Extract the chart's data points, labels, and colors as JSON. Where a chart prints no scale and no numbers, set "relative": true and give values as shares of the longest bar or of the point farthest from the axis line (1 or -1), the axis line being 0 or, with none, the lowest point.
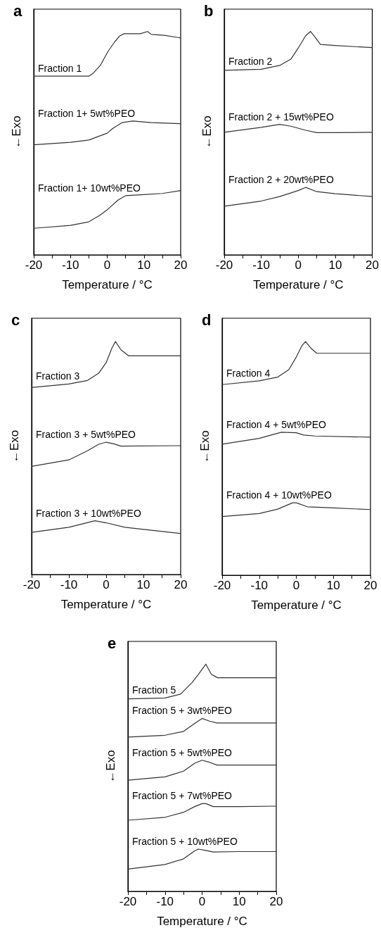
{
  "chart_data": [
    {
      "type": "line",
      "title": "a",
      "xlabel": "Temperature / °C",
      "ylabel": "←Exo",
      "relative": true,
      "marker": "none",
      "xlim": [
        -20,
        20
      ],
      "xticks": [
        -20,
        {
          "value": -15,
          "label": null
        },
        -10,
        {
          "value": -5,
          "label": null
        },
        0,
        {
          "value": 5,
          "label": null
        },
        10,
        {
          "value": 15,
          "label": null
        },
        20
      ],
      "series": [
        {
          "name": "Fraction 1",
          "color": "#333333",
          "x": [
            -20,
            -10,
            -5,
            -3.7,
            -1.8,
            0.2,
            2.1,
            3.4,
            4.6,
            9,
            11,
            12,
            15.5,
            20
          ],
          "values": [
            0.8,
            0.8,
            0.8,
            0.815,
            0.85,
            0.91,
            0.955,
            0.98,
            0.99,
            0.99,
            1,
            0.987,
            0.983,
            0.971
          ]
        },
        {
          "name": "Fraction 1+ 5wt%PEO",
          "color": "#333333",
          "x": [
            -20,
            -10,
            -5,
            0,
            1.5,
            4,
            7,
            12,
            20
          ],
          "values": [
            0.493,
            0.504,
            0.514,
            0.545,
            0.566,
            0.592,
            0.599,
            0.592,
            0.587
          ]
        },
        {
          "name": "Fraction 1+ 10wt%PEO",
          "color": "#333333",
          "x": [
            -20,
            -10,
            -5,
            -2,
            0,
            3,
            5,
            10,
            15,
            20
          ],
          "values": [
            0.119,
            0.132,
            0.148,
            0.177,
            0.202,
            0.246,
            0.265,
            0.27,
            0.275,
            0.288
          ]
        }
      ]
    },
    {
      "type": "line",
      "title": "b",
      "xlabel": "Temperature / °C",
      "ylabel": "←Exo",
      "relative": true,
      "marker": "none",
      "xlim": [
        -20,
        20
      ],
      "xticks": [
        -20,
        {
          "value": -15,
          "label": null
        },
        -10,
        {
          "value": -5,
          "label": null
        },
        0,
        {
          "value": 5,
          "label": null
        },
        10,
        {
          "value": 15,
          "label": null
        },
        20
      ],
      "series": [
        {
          "name": "Fraction 2",
          "color": "#333333",
          "x": [
            -20,
            -10,
            -5,
            -2,
            0,
            2,
            3.3,
            4.5,
            6,
            10,
            20
          ],
          "values": [
            0.826,
            0.831,
            0.848,
            0.876,
            0.926,
            0.981,
            1,
            0.976,
            0.942,
            0.937,
            0.928
          ]
        },
        {
          "name": "Fraction 2 + 15wt%PEO",
          "color": "#333333",
          "x": [
            -20,
            -10,
            -5,
            -2,
            2,
            5,
            10,
            20
          ],
          "values": [
            0.549,
            0.571,
            0.584,
            0.576,
            0.558,
            0.547,
            0.547,
            0.549
          ]
        },
        {
          "name": "Fraction 2 + 20wt%PEO",
          "color": "#333333",
          "x": [
            -20,
            -10,
            -5,
            0,
            2,
            5,
            10,
            20
          ],
          "values": [
            0.218,
            0.241,
            0.261,
            0.288,
            0.302,
            0.283,
            0.274,
            0.261
          ]
        }
      ]
    },
    {
      "type": "line",
      "title": "c",
      "xlabel": "Temperature / °C",
      "ylabel": "←Exo",
      "relative": true,
      "marker": "none",
      "xlim": [
        -20,
        20
      ],
      "xticks": [
        -20,
        {
          "value": -15,
          "label": null
        },
        -10,
        {
          "value": -5,
          "label": null
        },
        0,
        {
          "value": 5,
          "label": null
        },
        10,
        {
          "value": 15,
          "label": null
        },
        20
      ],
      "series": [
        {
          "name": "Fraction 3",
          "color": "#333333",
          "x": [
            -20,
            -10,
            -5,
            -2,
            0,
            1.5,
            2.5,
            4,
            6,
            20
          ],
          "values": [
            0.803,
            0.818,
            0.833,
            0.864,
            0.909,
            0.97,
            1,
            0.964,
            0.939,
            0.939
          ]
        },
        {
          "name": "Fraction 3 + 5wt%PEO",
          "color": "#333333",
          "x": [
            -20,
            -10,
            -5,
            -2,
            0,
            2,
            4,
            20
          ],
          "values": [
            0.464,
            0.492,
            0.531,
            0.559,
            0.568,
            0.561,
            0.551,
            0.553
          ]
        },
        {
          "name": "Fraction 3 + 10wt%PEO",
          "color": "#333333",
          "x": [
            -20,
            -10,
            -3,
            0,
            5,
            10,
            20
          ],
          "values": [
            0.181,
            0.203,
            0.231,
            0.222,
            0.203,
            0.194,
            0.176
          ]
        }
      ]
    },
    {
      "type": "line",
      "title": "d",
      "xlabel": "Temperature / °C",
      "ylabel": "←Exo",
      "relative": true,
      "marker": "none",
      "xlim": [
        -20,
        20
      ],
      "xticks": [
        -20,
        {
          "value": -15,
          "label": null
        },
        -10,
        {
          "value": -5,
          "label": null
        },
        0,
        {
          "value": 5,
          "label": null
        },
        10,
        {
          "value": 15,
          "label": null
        },
        20
      ],
      "series": [
        {
          "name": "Fraction 4",
          "color": "#333333",
          "x": [
            -20,
            -10,
            -5,
            -2,
            0,
            1.5,
            2.5,
            4,
            5.5,
            20
          ],
          "values": [
            0.816,
            0.832,
            0.848,
            0.88,
            0.934,
            0.982,
            1,
            0.971,
            0.95,
            0.95
          ]
        },
        {
          "name": "Fraction 4 + 5wt%PEO",
          "color": "#333333",
          "x": [
            -20,
            -10,
            -4,
            0,
            2,
            5,
            20
          ],
          "values": [
            0.561,
            0.586,
            0.612,
            0.61,
            0.6,
            0.596,
            0.591
          ]
        },
        {
          "name": "Fraction 4 + 10wt%PEO",
          "color": "#333333",
          "x": [
            -20,
            -10,
            -5,
            -1,
            0,
            3,
            10,
            20
          ],
          "values": [
            0.251,
            0.264,
            0.283,
            0.31,
            0.31,
            0.293,
            0.288,
            0.281
          ]
        }
      ]
    },
    {
      "type": "line",
      "title": "e",
      "xlabel": "Temperature / °C",
      "ylabel": "←Exo",
      "relative": true,
      "marker": "none",
      "xlim": [
        -20,
        20
      ],
      "xticks": [
        -20,
        {
          "value": -15,
          "label": null
        },
        -10,
        {
          "value": -5,
          "label": null
        },
        0,
        {
          "value": 5,
          "label": null
        },
        10,
        {
          "value": 15,
          "label": null
        },
        20
      ],
      "series": [
        {
          "name": "Fraction 5",
          "color": "#333333",
          "x": [
            -20,
            -10,
            -5.8,
            -2.7,
            -1,
            1,
            2.5,
            4.2,
            20
          ],
          "values": [
            0.847,
            0.851,
            0.868,
            0.919,
            0.955,
            1,
            0.955,
            0.94,
            0.94
          ]
        },
        {
          "name": "Fraction 5 + 3wt%PEO",
          "color": "#333333",
          "x": [
            -20,
            -10,
            -5,
            -2,
            0,
            2,
            4,
            20
          ],
          "values": [
            0.679,
            0.687,
            0.704,
            0.739,
            0.761,
            0.749,
            0.741,
            0.741
          ]
        },
        {
          "name": "Fraction 5 + 5wt%PEO",
          "color": "#333333",
          "x": [
            -20,
            -10,
            -5,
            -2,
            0,
            2,
            4,
            20
          ],
          "values": [
            0.489,
            0.504,
            0.529,
            0.564,
            0.577,
            0.568,
            0.556,
            0.556
          ]
        },
        {
          "name": "Fraction 5 + 7wt%PEO",
          "color": "#333333",
          "x": [
            -20,
            -10,
            -5,
            -2,
            0,
            1,
            3,
            10,
            20
          ],
          "values": [
            0.313,
            0.326,
            0.348,
            0.373,
            0.386,
            0.386,
            0.373,
            0.373,
            0.375
          ]
        },
        {
          "name": "Fraction 5 + 10wt%PEO",
          "color": "#333333",
          "x": [
            -20,
            -10,
            -5,
            -2,
            -1,
            1,
            3,
            10,
            20
          ],
          "values": [
            0.098,
            0.118,
            0.143,
            0.178,
            0.186,
            0.18,
            0.173,
            0.175,
            0.175
          ]
        }
      ]
    }
  ]
}
